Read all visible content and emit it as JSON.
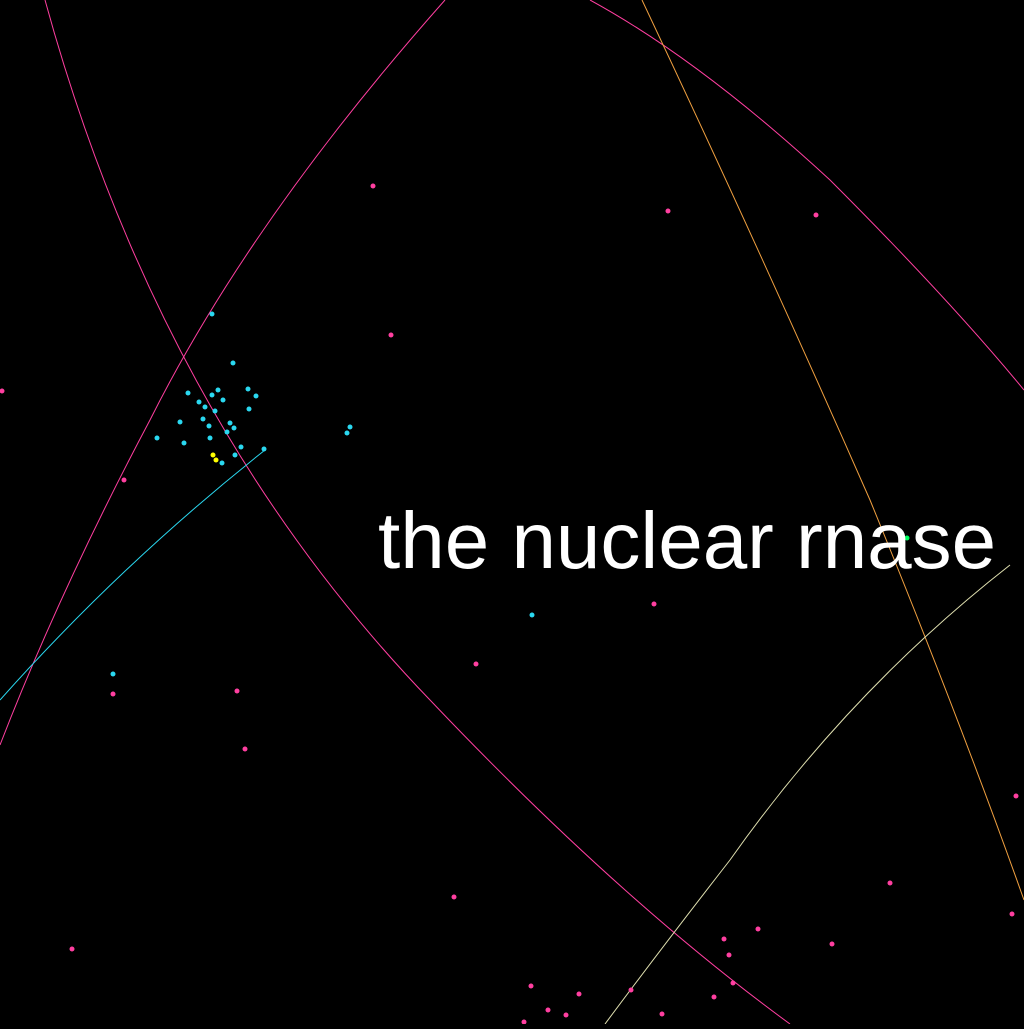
{
  "caption": "the nuclear rnase",
  "colors": {
    "background": "#000000",
    "caption": "#ffffff",
    "magenta": "#ff3fa0",
    "cyan": "#2ad8f0",
    "yellow": "#ffff00",
    "green": "#00ff60",
    "orange_curve": "#f0a040",
    "pale_curve": "#e0e0b0"
  }
}
